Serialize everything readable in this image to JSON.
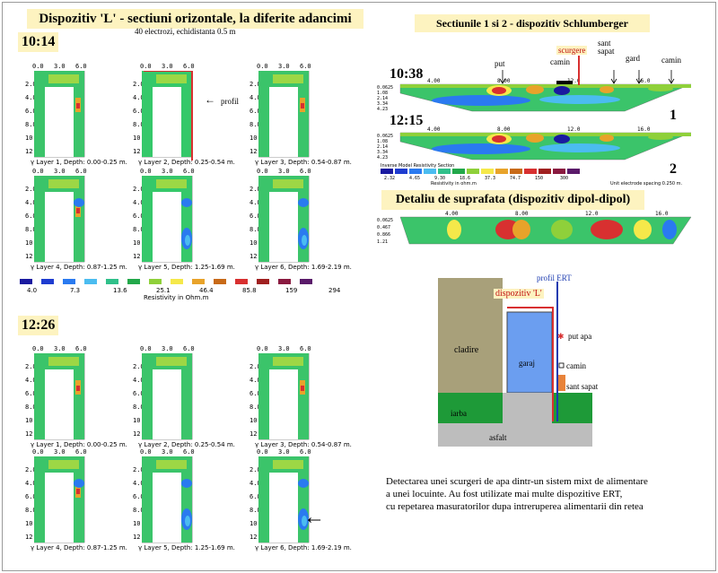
{
  "title": "Dispozitiv 'L' - sectiuni orizontale, la diferite adancimi",
  "subtitle": "40 electrozi, echidistanta 0.5 m",
  "times": {
    "t1": "10:14",
    "t2": "12:26",
    "t3": "10:38",
    "t4": "12:15"
  },
  "axis_top": [
    "0.0",
    "3.0",
    "6.0"
  ],
  "axis_left": [
    "2.0",
    "4.0",
    "6.0",
    "8.0",
    "10",
    "12"
  ],
  "layers_set1": [
    "Layer 1, Depth: 0.00-0.25 m.",
    "Layer 2, Depth: 0.25-0.54 m.",
    "Layer 3, Depth: 0.54-0.87 m.",
    "Layer 4, Depth: 0.87-1.25 m.",
    "Layer 5, Depth: 1.25-1.69 m.",
    "Layer 6, Depth: 1.69-2.19 m."
  ],
  "layers_set2": [
    "Layer 1, Depth: 0.00-0.25 m.",
    "Layer 2, Depth: 0.25-0.54 m.",
    "Layer 3, Depth: 0.54-0.87 m.",
    "Layer 4, Depth: 0.87-1.25 m.",
    "Layer 5, Depth: 1.25-1.69 m.",
    "Layer 6, Depth: 1.69-2.19 m."
  ],
  "profil_label": "profil",
  "scale": {
    "labels": [
      "4.0",
      "7.3",
      "13.6",
      "25.1",
      "46.4",
      "85.8",
      "159",
      "294"
    ],
    "caption": "Resistivity in Ohm.m",
    "colors": [
      "#1a1aa0",
      "#1e3cd0",
      "#2a7af0",
      "#4bbcf0",
      "#30c08a",
      "#22a84a",
      "#8fd03a",
      "#f5e84a",
      "#e8a32a",
      "#c86a18",
      "#d83030",
      "#a02020",
      "#8a1a40",
      "#5a1a6a"
    ]
  },
  "right": {
    "title": "Sectiunile 1 si 2 - dispozitiv Schlumberger",
    "labels": {
      "put": "put",
      "scurgere": "scurgere",
      "camin": "camin",
      "sant_sapat": "sant\nsapat",
      "gard": "gard",
      "camin2": "camin"
    },
    "num1": "1",
    "num2": "2",
    "section_ticks": [
      "4.00",
      "8.00",
      "12.0",
      "16.0"
    ],
    "depth_ticks": [
      "0.0625",
      "1.08",
      "2.14",
      "3.34",
      "4.23"
    ],
    "inv_caption": "Inverse Model Resistivity Section",
    "inv_unit": "Resistivity in ohm.m",
    "inv_spacing": "Unit electrode spacing 0.250 m.",
    "inv_scale": [
      "2.32",
      "4.65",
      "9.30",
      "18.6",
      "37.3",
      "74.7",
      "150",
      "300"
    ],
    "title2": "Detaliu de suprafata (dispozitiv dipol-dipol)",
    "depth2": [
      "0.0625",
      "0.467",
      "0.866",
      "1.21"
    ]
  },
  "schematic": {
    "profil_ert": "profil ERT",
    "dispozitiv": "dispozitiv 'L'",
    "put_apa": "put apa",
    "cladire": "cladire",
    "garaj": "garaj",
    "camin": "camin",
    "sant_sapat": "sant sapat",
    "iarba": "iarba",
    "asfalt": "asfalt"
  },
  "description": [
    "Detectarea unei scurgeri de apa dintr-un sistem mixt de alimentare",
    "a unei locuinte. Au fost utilizate mai multe dispozitive ERT,",
    "cu repetarea masuratorilor dupa intreruperea alimentarii din retea"
  ]
}
